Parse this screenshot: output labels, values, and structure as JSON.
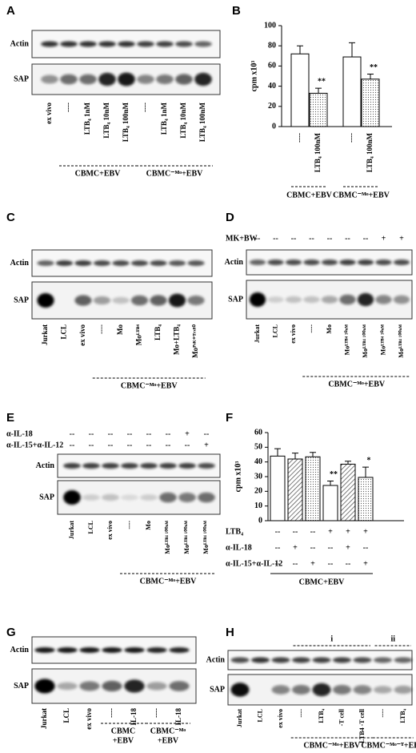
{
  "figure": {
    "A": {
      "label": "A",
      "rows": [
        "Actin",
        "SAP"
      ],
      "lanes": [
        "ex vivo",
        "----",
        "LTB₄ 1nM",
        "LTB₄ 10nM",
        "LTB₄ 100nM",
        "----",
        "LTB₄ 1nM",
        "LTB₄ 10nM",
        "LTB₄ 100nM"
      ],
      "groups": [
        "CBMC+EBV",
        "CBMC⁻ᴹᵒ+EBV"
      ]
    },
    "C": {
      "label": "C",
      "rows": [
        "Actin",
        "SAP"
      ],
      "lanes": [
        "Jurkat",
        "LCL",
        "ex vivo",
        "----",
        "Mo",
        "Moᴸᵀᴮ⁴",
        "LTB₄",
        "Mo+LTB₄",
        "Moᴾˢᴷ⁺ᵀʳˣ⁸⁰"
      ],
      "groups": [
        "CBMC⁻ᴹᵒ+EBV"
      ]
    },
    "D": {
      "label": "D",
      "rows": [
        "Actin",
        "SAP"
      ],
      "treatments": [
        {
          "name": "MK+BW",
          "marks": [
            "--",
            "--",
            "--",
            "--",
            "--",
            "--",
            "--",
            "+",
            "+"
          ]
        }
      ],
      "lanes": [
        "Jurkat",
        "LCL",
        "ex vivo",
        "----",
        "Mo",
        "Moᴸᵀᴮ⁴ ¹⁰ⁿᴹ",
        "Moᴸᵀᴮ⁴ ¹⁰⁰ⁿᴹ",
        "Moᴸᵀᴮ⁴ ¹⁰ⁿᴹ",
        "Moᴸᵀᴮ⁴ ¹⁰⁰ⁿᴹ"
      ],
      "groups": [
        "CBMC⁻ᴹᵒ+EBV"
      ]
    },
    "E": {
      "label": "E",
      "rows": [
        "Actin",
        "SAP"
      ],
      "treatments": [
        {
          "name": "α-IL-18",
          "marks": [
            "--",
            "--",
            "--",
            "--",
            "--",
            "--",
            "+",
            "--"
          ]
        },
        {
          "name": "α-IL-15+α-IL-12",
          "marks": [
            "--",
            "--",
            "--",
            "--",
            "--",
            "--",
            "--",
            "+"
          ]
        }
      ],
      "lanes": [
        "Jurkat",
        "LCL",
        "ex vivo",
        "----",
        "Mo",
        "Moᴸᵀᴮ⁴ ¹⁰⁰ⁿᴹ",
        "Moᴸᵀᴮ⁴ ¹⁰⁰ⁿᴹ",
        "Moᴸᵀᴮ⁴ ¹⁰⁰ⁿᴹ"
      ],
      "groups": [
        "CBMC⁻ᴹᵒ+EBV"
      ]
    },
    "G": {
      "label": "G",
      "rows": [
        "Actin",
        "SAP"
      ],
      "lanes": [
        "Jurkat",
        "LCL",
        "ex vivo",
        "----",
        "IL-18",
        "----",
        "IL-18"
      ],
      "groups": [
        [
          "CBMC",
          "+EBV"
        ],
        [
          "CBMC⁻ᴹᵒ",
          "+EBV"
        ]
      ]
    },
    "H": {
      "label": "H",
      "rows": [
        "Actin",
        "SAP"
      ],
      "sections": [
        "i",
        "ii"
      ],
      "lanes": [
        "Jurkat",
        "LCL",
        "ex vivo",
        "----",
        "LTB₄",
        "-T cell",
        "LTB4 -T cell",
        "----",
        "LTB₄"
      ],
      "groups": [
        "CBMC⁻ᴹᵒ+EBV",
        "CBMC⁻ᴹᵒ⁻ᵀ+EBV"
      ]
    }
  },
  "chart_data": [
    {
      "type": "bar",
      "panel": "B",
      "ylabel": "cpm x10³",
      "ylim": [
        0,
        100
      ],
      "yticks": [
        0,
        20,
        40,
        60,
        80,
        100
      ],
      "categories": [
        "----",
        "LTB₄ 100nM",
        "----",
        "LTB₄ 100nM"
      ],
      "values": [
        72,
        33,
        69,
        47
      ],
      "errors": [
        8,
        5,
        14,
        5
      ],
      "fills": [
        "white",
        "dots",
        "white",
        "dots"
      ],
      "annotations": [
        null,
        "**",
        null,
        "**"
      ],
      "groups": [
        "CBMC+EBV",
        "CBMC⁻ᴹᵒ+EBV"
      ]
    },
    {
      "type": "bar",
      "panel": "F",
      "ylabel": "cpm x10³",
      "ylim": [
        0,
        60
      ],
      "yticks": [
        0,
        10,
        20,
        30,
        40,
        50,
        60
      ],
      "values": [
        44,
        42,
        43.5,
        24,
        38.5,
        29.5
      ],
      "errors": [
        5,
        4,
        3,
        3,
        2,
        7
      ],
      "fills": [
        "white",
        "hatch",
        "dots",
        "white",
        "hatch",
        "dots"
      ],
      "annotations": [
        null,
        null,
        null,
        "**",
        null,
        "*"
      ],
      "conditions": [
        {
          "name": "LTB₄",
          "marks": [
            "--",
            "--",
            "--",
            "+",
            "+",
            "+"
          ]
        },
        {
          "name": "α-IL-18",
          "marks": [
            "--",
            "+",
            "--",
            "--",
            "+",
            "--"
          ]
        },
        {
          "name": "α-IL-15+α-IL-12",
          "marks": [
            "--",
            "--",
            "+",
            "--",
            "--",
            "+"
          ]
        }
      ],
      "groups": [
        "CBMC+EBV"
      ]
    }
  ]
}
